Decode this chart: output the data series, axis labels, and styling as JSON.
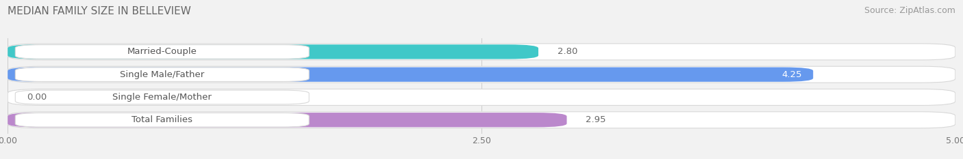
{
  "title": "MEDIAN FAMILY SIZE IN BELLEVIEW",
  "source": "Source: ZipAtlas.com",
  "categories": [
    "Married-Couple",
    "Single Male/Father",
    "Single Female/Mother",
    "Total Families"
  ],
  "values": [
    2.8,
    4.25,
    0.0,
    2.95
  ],
  "bar_colors": [
    "#40c8c8",
    "#6699ee",
    "#ff99bb",
    "#bb88cc"
  ],
  "xlim": [
    0,
    5.0
  ],
  "xticks": [
    0.0,
    2.5,
    5.0
  ],
  "background_color": "#f2f2f2",
  "row_bg_color": "#ffffff",
  "row_border_color": "#d8d8d8",
  "title_fontsize": 11,
  "source_fontsize": 9,
  "label_fontsize": 9.5,
  "value_fontsize": 9.5,
  "bar_bg_color": "#e8e8e8"
}
